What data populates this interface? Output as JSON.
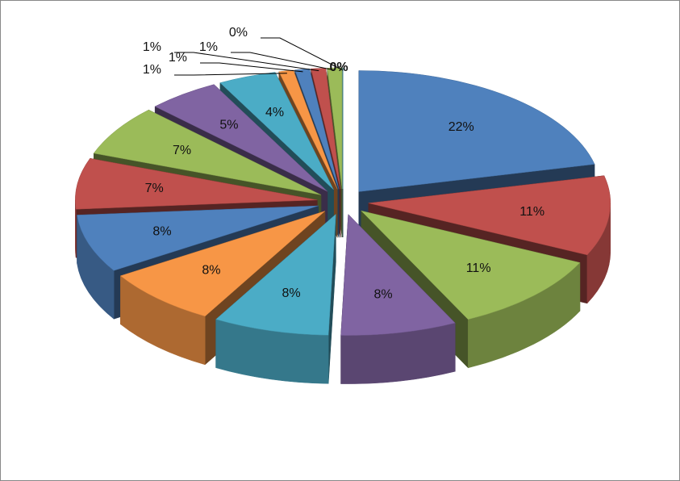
{
  "chart_data": {
    "type": "pie3d",
    "values": [
      22,
      11,
      11,
      8,
      8,
      8,
      8,
      7,
      7,
      5,
      4,
      1,
      1,
      1,
      1,
      0,
      0
    ],
    "value_labels": [
      "22%",
      "11%",
      "11%",
      "8%",
      "8%",
      "8%",
      "8%",
      "7%",
      "7%",
      "5%",
      "4%",
      "1%",
      "1%",
      "1%",
      "1%",
      "0%",
      "0%"
    ],
    "colors": [
      "#4f81bd",
      "#c0504d",
      "#9bbb59",
      "#8064a2",
      "#4bacc6",
      "#f79646",
      "#4f81bd",
      "#c0504d",
      "#9bbb59",
      "#8064a2",
      "#4bacc6",
      "#f79646",
      "#4f81bd",
      "#c0504d",
      "#9bbb59",
      "#8064a2",
      "#4bacc6"
    ]
  }
}
